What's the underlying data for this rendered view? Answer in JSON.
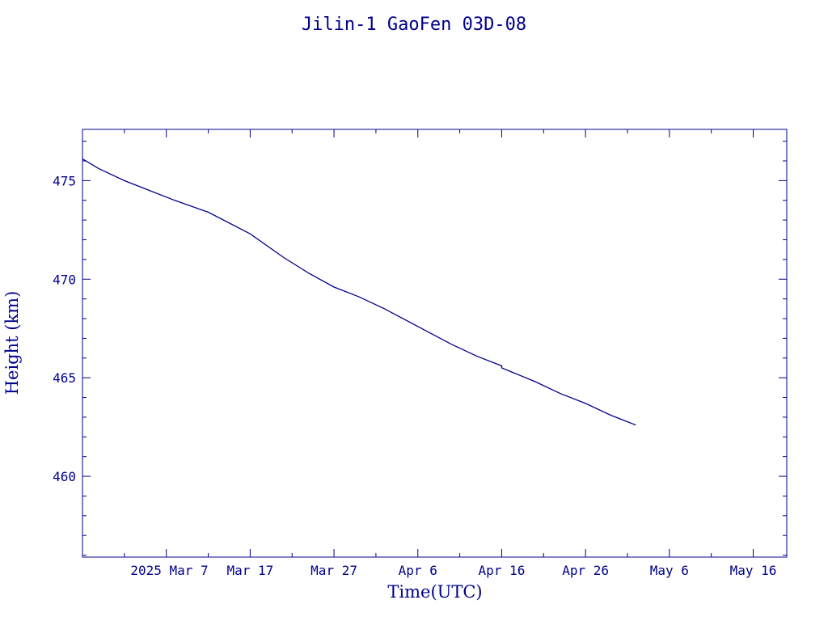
{
  "chart_data": {
    "type": "line",
    "title": "Jilin-1 GaoFen 03D-08",
    "xlabel": "Time(UTC)",
    "ylabel": "Height (km)",
    "x_tick_labels": [
      "2025 Mar  7",
      "Mar 17",
      "Mar 27",
      "Apr  6",
      "Apr 16",
      "Apr 26",
      "May  6",
      "May 16"
    ],
    "y_ticks": [
      460,
      465,
      470,
      475
    ],
    "ylim": [
      455.9,
      477.6
    ],
    "x_axis_type": "date",
    "xlim": [
      "2025-02-25",
      "2025-05-20"
    ],
    "colors": {
      "axis": "#00008b",
      "line": "#00008b"
    },
    "series": [
      {
        "x": [
          "2025-02-25",
          "2025-02-27",
          "2025-03-02",
          "2025-03-05",
          "2025-03-08",
          "2025-03-12",
          "2025-03-17",
          "2025-03-21",
          "2025-03-24",
          "2025-03-27",
          "2025-03-30",
          "2025-04-02",
          "2025-04-06",
          "2025-04-10",
          "2025-04-13",
          "2025-04-16",
          "2025-04-16",
          "2025-04-20",
          "2025-04-23",
          "2025-04-26",
          "2025-04-29",
          "2025-05-02"
        ],
        "y": [
          476.1,
          475.6,
          475.0,
          474.5,
          474.0,
          473.4,
          472.3,
          471.1,
          470.3,
          469.6,
          469.1,
          468.5,
          467.6,
          466.7,
          466.1,
          465.6,
          465.5,
          464.8,
          464.2,
          463.7,
          463.1,
          462.6
        ]
      }
    ]
  }
}
